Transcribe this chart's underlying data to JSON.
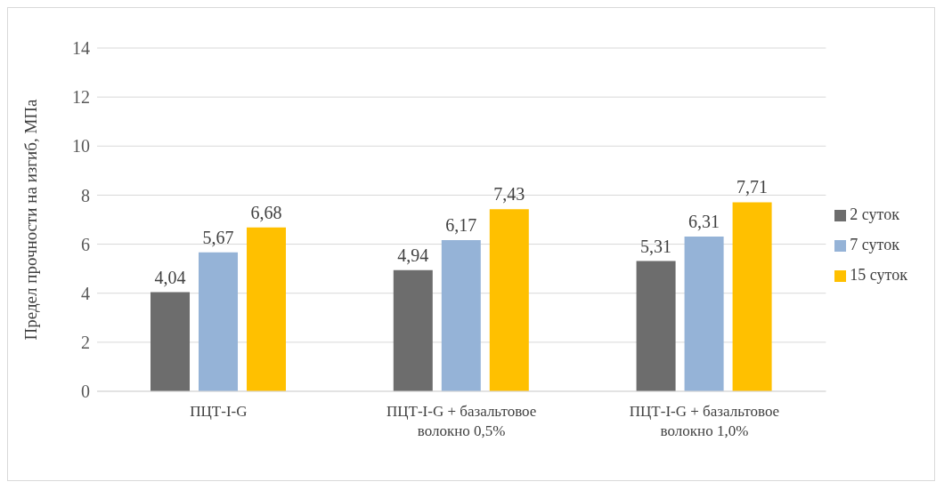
{
  "chart_data": {
    "type": "bar",
    "ylabel": "Предел прочности на изгиб, МПа",
    "categories": [
      "ПЦТ-I-G",
      "ПЦТ-I-G + базальтовое волокно 0,5%",
      "ПЦТ-I-G + базальтовое волокно 1,0%"
    ],
    "series": [
      {
        "name": "2 суток",
        "color": "#6d6d6d",
        "values": [
          4.04,
          4.94,
          5.31
        ],
        "value_labels": [
          "4,04",
          "4,94",
          "5,31"
        ]
      },
      {
        "name": "7 суток",
        "color": "#95b3d7",
        "values": [
          5.67,
          6.17,
          6.31
        ],
        "value_labels": [
          "5,67",
          "6,17",
          "6,31"
        ]
      },
      {
        "name": "15 суток",
        "color": "#ffc000",
        "values": [
          6.68,
          7.43,
          7.71
        ],
        "value_labels": [
          "6,68",
          "7,43",
          "7,71"
        ]
      }
    ],
    "ylim": [
      0,
      14
    ],
    "yticks": [
      0,
      2,
      4,
      6,
      8,
      10,
      12,
      14
    ],
    "grid": "y",
    "legend": "right"
  }
}
